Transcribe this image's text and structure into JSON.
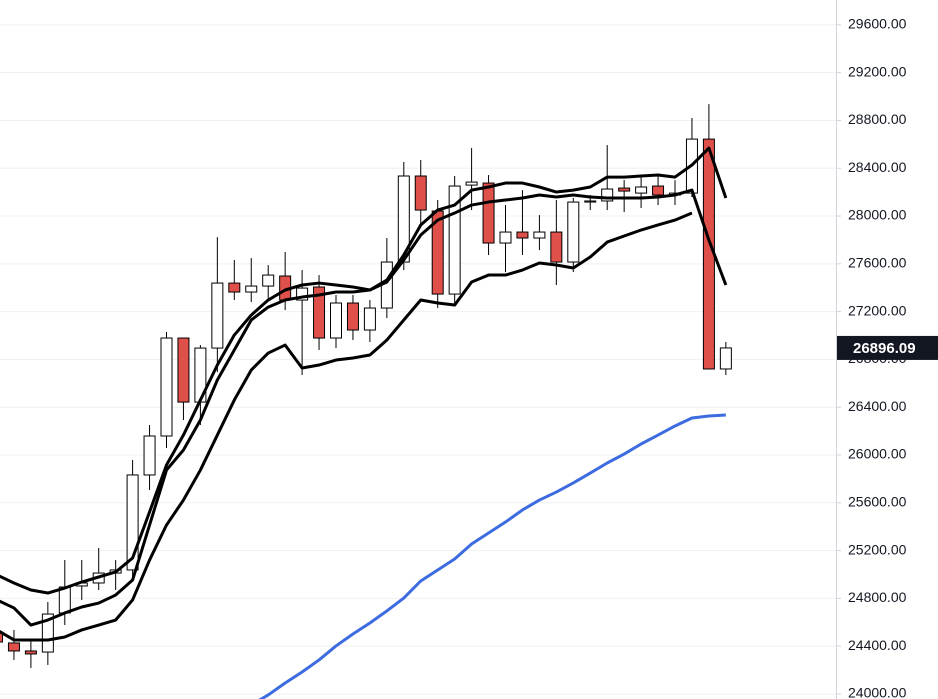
{
  "chart_data": {
    "type": "candlestick",
    "ylim": [
      23958,
      29808
    ],
    "yticks": [
      {
        "value": 24000,
        "label": "24000.00"
      },
      {
        "value": 24400,
        "label": "24400.00"
      },
      {
        "value": 24800,
        "label": "24800.00"
      },
      {
        "value": 25200,
        "label": "25200.00"
      },
      {
        "value": 25600,
        "label": "25600.00"
      },
      {
        "value": 26000,
        "label": "26000.00"
      },
      {
        "value": 26400,
        "label": "26400.00"
      },
      {
        "value": 26800,
        "label": "26800.00"
      },
      {
        "value": 27200,
        "label": "27200.00"
      },
      {
        "value": 27600,
        "label": "27600.00"
      },
      {
        "value": 28000,
        "label": "28000.00"
      },
      {
        "value": 28400,
        "label": "28400.00"
      },
      {
        "value": 28800,
        "label": "28800.00"
      },
      {
        "value": 29200,
        "label": "29200.00"
      },
      {
        "value": 29600,
        "label": "29600.00"
      }
    ],
    "grid": true,
    "up_color": "#ffffff",
    "down_color": "#e0504a",
    "open": [
      24519,
      24427,
      24360,
      24351,
      24678,
      24904,
      24929,
      25012,
      25038,
      25833,
      26159,
      26979,
      26443,
      26895,
      27439,
      27364,
      27414,
      27498,
      27297,
      27406,
      26979,
      27272,
      27046,
      27230,
      27615,
      28335,
      28042,
      27347,
      28259,
      28276,
      27774,
      27866,
      27816,
      27866,
      27615,
      28117,
      28126,
      28234,
      28192,
      28251,
      28176,
      28192,
      28644,
      26720
    ],
    "high": [
      24619,
      24536,
      24452,
      24770,
      25121,
      25121,
      25222,
      25121,
      25958,
      26251,
      27029,
      26979,
      26920,
      27824,
      27632,
      27648,
      27590,
      27699,
      27548,
      27506,
      27339,
      27339,
      27297,
      27816,
      28452,
      28469,
      28134,
      28335,
      28569,
      28343,
      28092,
      28217,
      28008,
      28134,
      28151,
      28176,
      28594,
      28301,
      28343,
      28343,
      28301,
      28820,
      28937,
      26946
    ],
    "low": [
      24285,
      24285,
      24218,
      24243,
      24577,
      24787,
      24870,
      24870,
      24954,
      25707,
      26059,
      26293,
      26251,
      26694,
      27297,
      27280,
      27297,
      27213,
      26669,
      26879,
      26895,
      26962,
      26946,
      27146,
      27548,
      27925,
      27230,
      27255,
      28050,
      27674,
      27531,
      27674,
      27715,
      27423,
      27531,
      28050,
      28050,
      28033,
      28067,
      28092,
      28092,
      28159,
      26720,
      26669
    ],
    "close": [
      24435,
      24360,
      24335,
      24669,
      24895,
      24929,
      25012,
      25038,
      25833,
      26159,
      26979,
      26443,
      26895,
      27439,
      27364,
      27414,
      27506,
      27297,
      27397,
      26979,
      27272,
      27046,
      27230,
      27615,
      28335,
      28050,
      27347,
      28251,
      28284,
      27774,
      27866,
      27816,
      27866,
      27615,
      28117,
      28126,
      28226,
      28209,
      28243,
      28176,
      28192,
      28644,
      26720,
      26896.09
    ],
    "lines": [
      {
        "color": "#000000",
        "values": [
          24996,
          24929,
          24870,
          24845,
          24887,
          24937,
          24979,
          25021,
          25138,
          25523,
          25916,
          26167,
          26460,
          26753,
          27004,
          27171,
          27297,
          27381,
          27423,
          27439,
          27423,
          27406,
          27381,
          27464,
          27674,
          27925,
          28050,
          28092,
          28217,
          28243,
          28276,
          28276,
          28243,
          28201,
          28217,
          28243,
          28326,
          28326,
          28335,
          28343,
          28326,
          28427,
          28569,
          28151
        ]
      },
      {
        "color": "#000000",
        "values": [
          24787,
          24720,
          24577,
          24619,
          24678,
          24728,
          24761,
          24828,
          24954,
          25414,
          25874,
          26042,
          26293,
          26628,
          26879,
          27130,
          27238,
          27297,
          27322,
          27339,
          27364,
          27364,
          27381,
          27448,
          27632,
          27841,
          27966,
          28025,
          28092,
          28117,
          28134,
          28151,
          28176,
          28159,
          28176,
          28159,
          28151,
          28151,
          28151,
          28159,
          28176,
          28217,
          27799,
          27423
        ]
      },
      {
        "color": "#000000",
        "values": [
          24536,
          24452,
          24452,
          24452,
          24477,
          24536,
          24577,
          24619,
          24787,
          25121,
          25414,
          25623,
          25874,
          26167,
          26460,
          26711,
          26853,
          26920,
          26728,
          26753,
          26795,
          26812,
          26837,
          26962,
          27130,
          27297,
          27272,
          27255,
          27448,
          27506,
          27506,
          27548,
          27607,
          27590,
          27565,
          27657,
          27782,
          27833,
          27883,
          27925,
          27966,
          28025,
          null,
          null
        ]
      },
      {
        "color": "#3d6be0",
        "values": [
          null,
          null,
          null,
          null,
          null,
          null,
          null,
          null,
          null,
          null,
          null,
          null,
          null,
          null,
          null,
          23908,
          23992,
          24092,
          24184,
          24285,
          24402,
          24502,
          24594,
          24695,
          24803,
          24946,
          25038,
          25130,
          25255,
          25347,
          25439,
          25540,
          25623,
          25690,
          25766,
          25849,
          25933,
          26008,
          26092,
          26167,
          26243,
          26310,
          26326,
          26335
        ]
      }
    ]
  }
}
